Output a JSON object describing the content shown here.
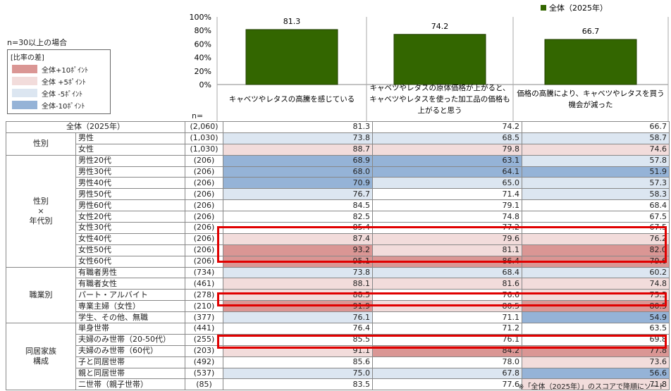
{
  "note_n": "n=30以上の場合",
  "legend": {
    "title": "[比率の差]",
    "items": [
      {
        "label": "全体+10ﾎﾟｲﾝﾄ",
        "color": "#da9694"
      },
      {
        "label": "全体 +5ﾎﾟｲﾝﾄ",
        "color": "#f2dcdb"
      },
      {
        "label": "全体 -5ﾎﾟｲﾝﾄ",
        "color": "#dce6f1"
      },
      {
        "label": "全体-10ﾎﾟｲﾝﾄ",
        "color": "#95b3d7"
      }
    ]
  },
  "n_header": "n=",
  "footnote": "※「全体（2025年）」のスコアで降順にソート",
  "chart_data": {
    "type": "bar",
    "categories": [
      "キャベツやレタスの高騰を感じている",
      "キャベツやレタスの原体価格が上がると、キャベツやレタスを使った加工品の価格も上がると思う",
      "価格の高騰により、キャベツやレタスを買う機会が減った"
    ],
    "category_lines": [
      [
        "キャベツやレタスの高騰を感じている"
      ],
      [
        "キャベツやレタスの原体価格が上がると、",
        "キャベツやレタスを使った加工品の価格も",
        "上がると思う"
      ],
      [
        "価格の高騰により、キャベツやレタスを買う",
        "機会が減った"
      ]
    ],
    "series": [
      {
        "name": "全体（2025年）",
        "values": [
          81.3,
          74.2,
          66.7
        ]
      }
    ],
    "value_labels": [
      "81.3",
      "74.2",
      "66.7"
    ],
    "ylim": [
      0,
      100
    ],
    "yticks": [
      "0%",
      "20%",
      "40%",
      "60%",
      "80%",
      "100%"
    ],
    "bar_color": "#336600",
    "legend_position": "top-right"
  },
  "table": {
    "total": {
      "label": "全体（2025年）",
      "n": "(2,060)",
      "values": [
        "81.3",
        "74.2",
        "66.7"
      ]
    },
    "groups": [
      {
        "label_lines": [
          "性別"
        ],
        "rows": [
          {
            "label": "男性",
            "n": "(1,030)",
            "values": [
              "73.8",
              "68.5",
              "58.7"
            ],
            "shade": [
              "m5",
              "m5",
              "m5"
            ]
          },
          {
            "label": "女性",
            "n": "(1,030)",
            "values": [
              "88.7",
              "79.8",
              "74.6"
            ],
            "shade": [
              "p5",
              "p5",
              "p5"
            ]
          }
        ]
      },
      {
        "label_lines": [
          "性別",
          "×",
          "年代別"
        ],
        "rows": [
          {
            "label": "男性20代",
            "n": "(206)",
            "values": [
              "68.9",
              "63.1",
              "57.8"
            ],
            "shade": [
              "m10",
              "m10",
              "m5"
            ]
          },
          {
            "label": "男性30代",
            "n": "(206)",
            "values": [
              "68.0",
              "64.1",
              "51.9"
            ],
            "shade": [
              "m10",
              "m10",
              "m10"
            ]
          },
          {
            "label": "男性40代",
            "n": "(206)",
            "values": [
              "70.9",
              "65.0",
              "57.3"
            ],
            "shade": [
              "m10",
              "m5",
              "m5"
            ]
          },
          {
            "label": "男性50代",
            "n": "(206)",
            "values": [
              "76.7",
              "71.4",
              "58.3"
            ],
            "shade": [
              "m5",
              "",
              "m5"
            ]
          },
          {
            "label": "男性60代",
            "n": "(206)",
            "values": [
              "84.5",
              "79.1",
              "68.4"
            ],
            "shade": [
              "",
              "",
              ""
            ]
          },
          {
            "label": "女性20代",
            "n": "(206)",
            "values": [
              "82.5",
              "74.8",
              "67.5"
            ],
            "shade": [
              "",
              "",
              ""
            ]
          },
          {
            "label": "女性30代",
            "n": "(206)",
            "values": [
              "85.4",
              "77.2",
              "67.5"
            ],
            "shade": [
              "",
              "",
              ""
            ]
          },
          {
            "label": "女性40代",
            "n": "(206)",
            "values": [
              "87.4",
              "79.6",
              "76.2"
            ],
            "shade": [
              "p5",
              "p5",
              "p5"
            ]
          },
          {
            "label": "女性50代",
            "n": "(206)",
            "values": [
              "93.2",
              "81.1",
              "82.0"
            ],
            "shade": [
              "p10",
              "p5",
              "p10"
            ]
          },
          {
            "label": "女性60代",
            "n": "(206)",
            "values": [
              "95.1",
              "86.4",
              "79.6"
            ],
            "shade": [
              "p10",
              "p10",
              "p10"
            ]
          }
        ]
      },
      {
        "label_lines": [
          "職業別"
        ],
        "rows": [
          {
            "label": "有職者男性",
            "n": "(734)",
            "values": [
              "73.8",
              "68.4",
              "60.2"
            ],
            "shade": [
              "m5",
              "m5",
              "m5"
            ]
          },
          {
            "label": "有職者女性",
            "n": "(461)",
            "values": [
              "88.1",
              "81.6",
              "74.8"
            ],
            "shade": [
              "p5",
              "p5",
              "p5"
            ]
          },
          {
            "label": "パート・アルバイト",
            "n": "(278)",
            "values": [
              "88.5",
              "76.6",
              "75.5"
            ],
            "shade": [
              "p5",
              "",
              "p5"
            ]
          },
          {
            "label": "専業主婦（女性）",
            "n": "(210)",
            "values": [
              "91.9",
              "80.5",
              "80.5"
            ],
            "shade": [
              "p10",
              "p5",
              "p10"
            ]
          },
          {
            "label": "学生、その他、無職",
            "n": "(377)",
            "values": [
              "76.1",
              "71.1",
              "54.9"
            ],
            "shade": [
              "m5",
              "",
              "m10"
            ]
          }
        ]
      },
      {
        "label_lines": [
          "同居家族",
          "構成"
        ],
        "rows": [
          {
            "label": "単身世帯",
            "n": "(441)",
            "values": [
              "76.4",
              "71.2",
              "63.5"
            ],
            "shade": [
              "",
              "",
              ""
            ]
          },
          {
            "label": "夫婦のみ世帯（20-50代）",
            "n": "(255)",
            "values": [
              "85.5",
              "76.1",
              "69.8"
            ],
            "shade": [
              "",
              "",
              ""
            ]
          },
          {
            "label": "夫婦のみ世帯（60代）",
            "n": "(203)",
            "values": [
              "91.1",
              "84.2",
              "77.8"
            ],
            "shade": [
              "p5",
              "p10",
              "p10"
            ]
          },
          {
            "label": "子と同居世帯",
            "n": "(492)",
            "values": [
              "85.6",
              "78.0",
              "73.6"
            ],
            "shade": [
              "",
              "",
              "p5"
            ]
          },
          {
            "label": "親と同居世帯",
            "n": "(537)",
            "values": [
              "75.0",
              "67.8",
              "56.6"
            ],
            "shade": [
              "m5",
              "m5",
              "m10"
            ]
          },
          {
            "label": "二世帯（親子世帯）",
            "n": "(85)",
            "values": [
              "83.5",
              "77.6",
              "71.8"
            ],
            "shade": [
              "",
              "",
              "p5"
            ]
          }
        ]
      }
    ]
  }
}
